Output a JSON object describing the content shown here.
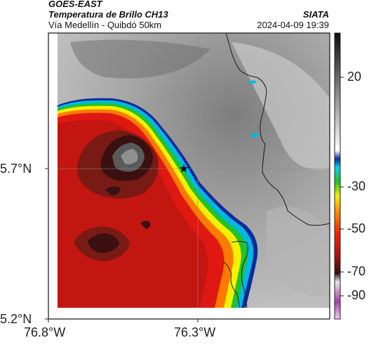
{
  "header": {
    "source": "GOES-EAST",
    "product": "Temperatura de Brillo CH13",
    "organization": "SIATA",
    "region": "Vía Medellín - Quibdó 50km",
    "datetime": "2024-04-09 19:39"
  },
  "map": {
    "lat_ticks": [
      "5.7°N",
      "5.2°N"
    ],
    "lon_ticks": [
      "76.8°W",
      "76.3°W"
    ],
    "marker": "star-marker"
  },
  "colorbar": {
    "ticks": [
      "20",
      "-30",
      "-50",
      "-70",
      "-90"
    ]
  },
  "colors": {
    "cold_core": "#3a1010",
    "red": "#dd1a12",
    "orange": "#ff7a00",
    "yellow": "#f6f000",
    "green": "#22c22a",
    "cyan": "#00b8e6",
    "blue": "#0a2a9a",
    "warm_gray": "#9a9a9a"
  }
}
